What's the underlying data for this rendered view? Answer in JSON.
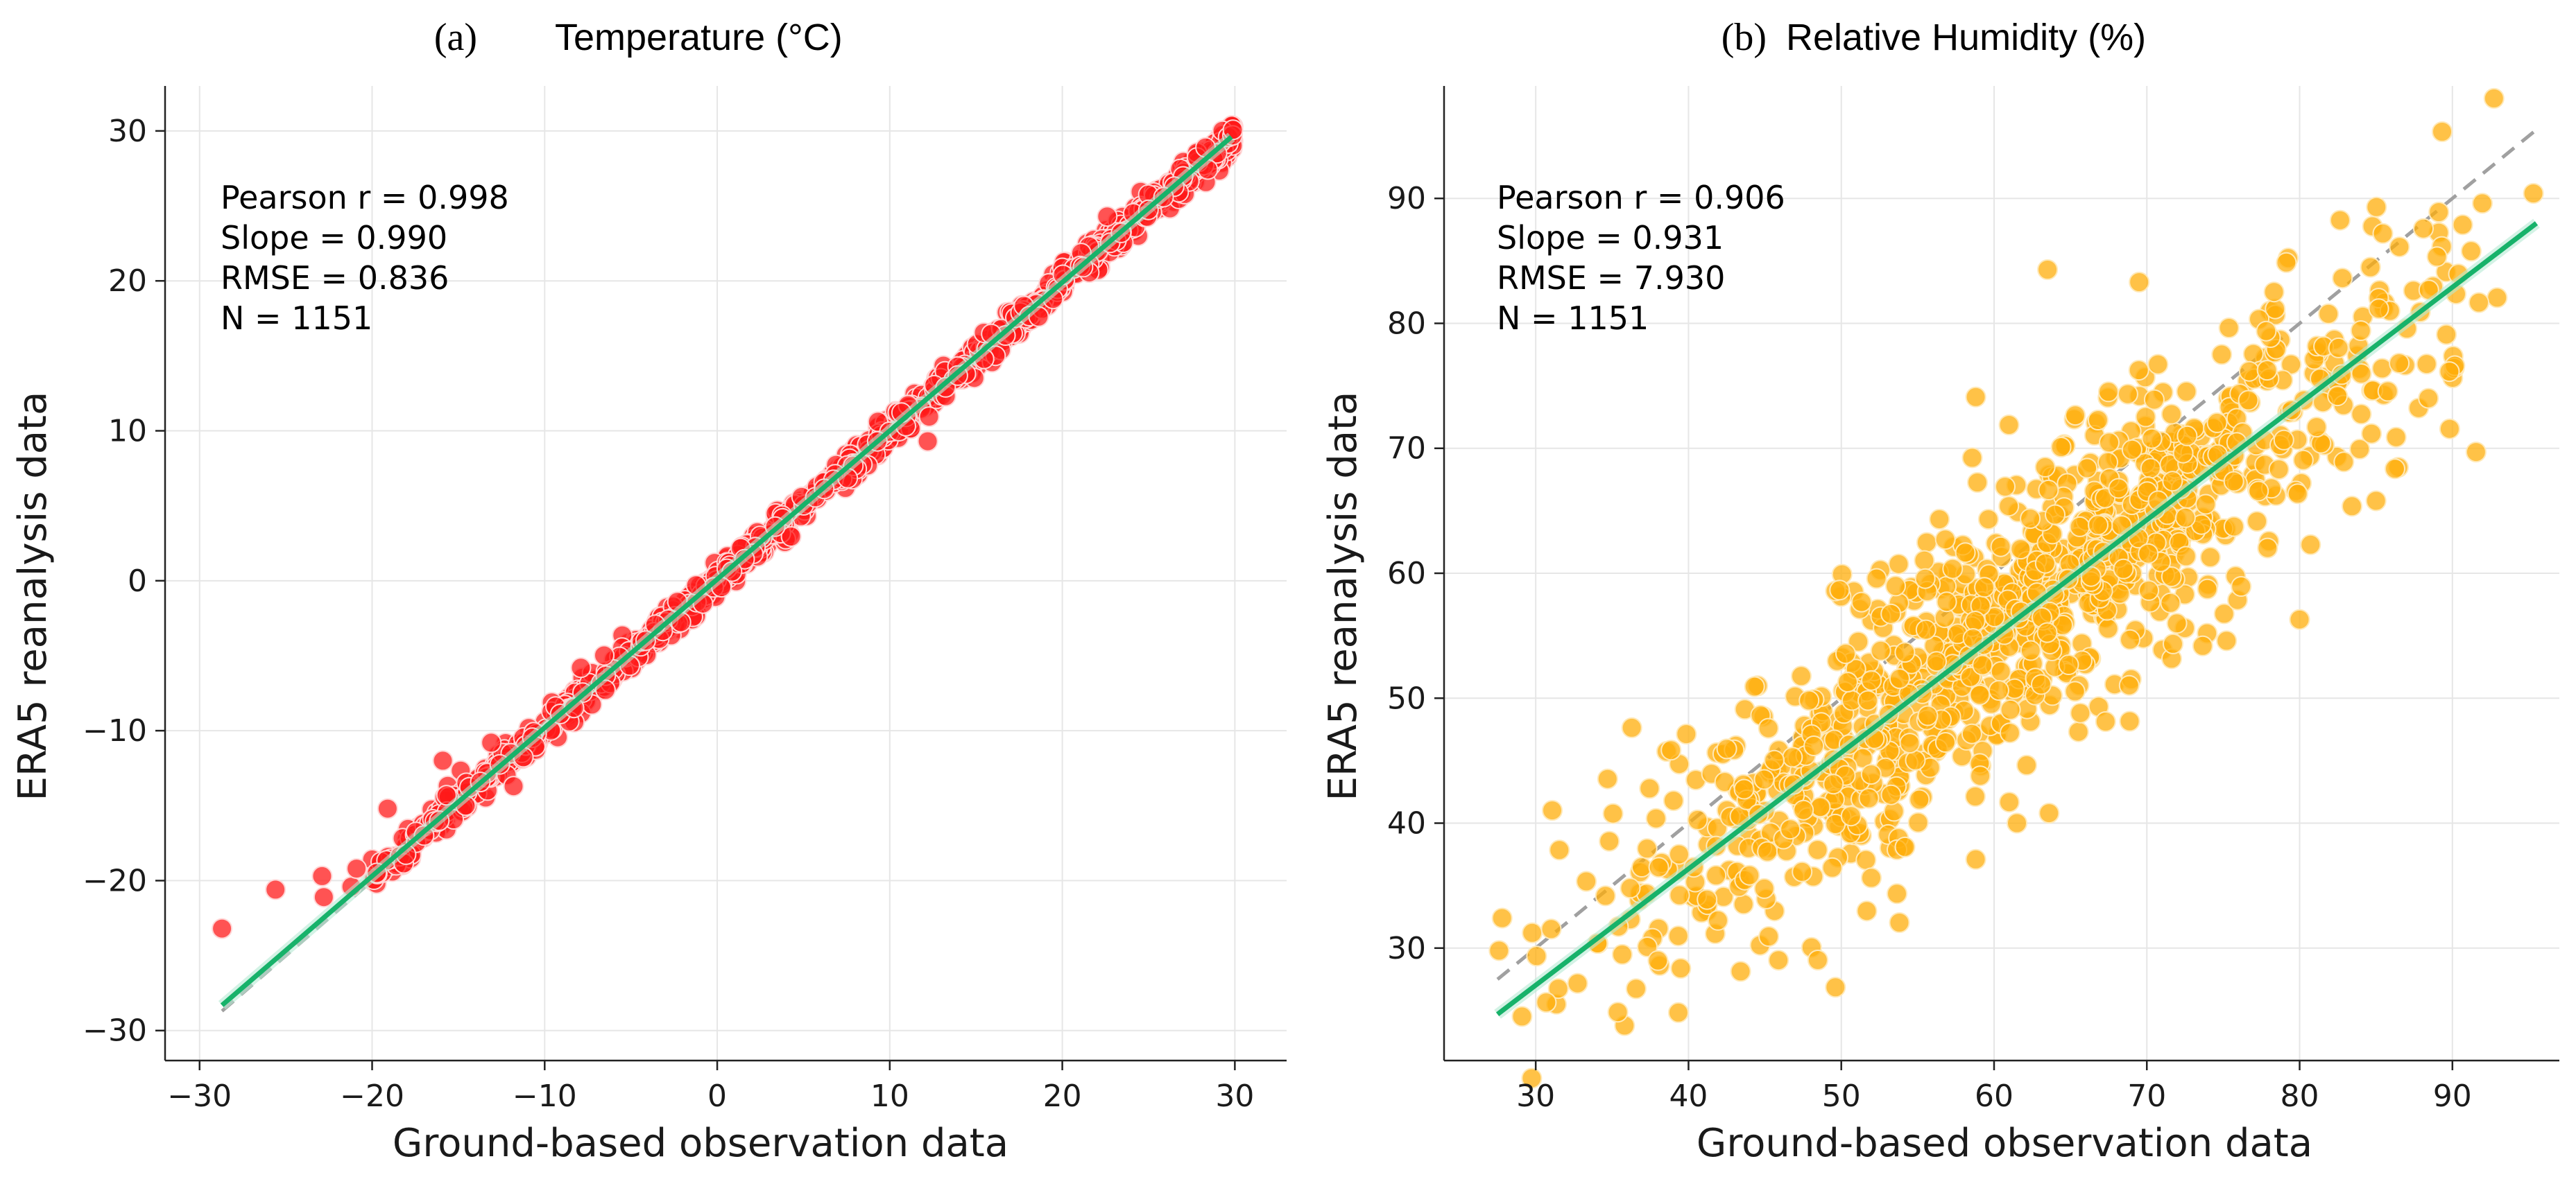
{
  "chart_data": [
    {
      "type": "scatter",
      "panel_label": "(a)",
      "title": "Temperature (°C)",
      "xlabel": "Ground-based observation data",
      "ylabel": "ERA5 reanalysis data",
      "xlim": [
        -32,
        33
      ],
      "ylim": [
        -32,
        33
      ],
      "xticks": [
        -30,
        -20,
        -10,
        0,
        10,
        20,
        30
      ],
      "yticks": [
        -30,
        -20,
        -10,
        0,
        10,
        20,
        30
      ],
      "xtick_labels": [
        "−30",
        "−20",
        "−10",
        "0",
        "10",
        "20",
        "30"
      ],
      "ytick_labels": [
        "−30",
        "−20",
        "−10",
        "0",
        "10",
        "20",
        "30"
      ],
      "grid": true,
      "stats": [
        "Pearson r = 0.998",
        "Slope = 0.990",
        "RMSE = 0.836",
        "N = 1151"
      ],
      "stat_values": {
        "pearson_r": 0.998,
        "slope": 0.99,
        "rmse": 0.836,
        "n": 1151
      },
      "point_color": "#ff1a1a",
      "point_edge": "#ffd6d6",
      "point_alpha": 0.75,
      "fit_line": {
        "slope": 0.99,
        "intercept": 0.1,
        "x_range": [
          -28.7,
          29.8
        ],
        "color": "#17b26a"
      },
      "reference_line": {
        "slope": 1,
        "intercept": 0,
        "x_range": [
          -28.7,
          29.8
        ],
        "color": "#a0a0a0",
        "style": "dashed"
      },
      "outliers": [
        {
          "x": -28.7,
          "y": -23.2
        },
        {
          "x": -25.6,
          "y": -20.6
        },
        {
          "x": -22.9,
          "y": -19.7
        },
        {
          "x": -22.8,
          "y": -21.1
        },
        {
          "x": -21.2,
          "y": -20.4
        },
        {
          "x": -20.9,
          "y": -19.2
        },
        {
          "x": -19.1,
          "y": -15.2
        },
        {
          "x": -15.9,
          "y": -12.0
        },
        {
          "x": -13.1,
          "y": -10.8
        },
        {
          "x": -11.8,
          "y": -13.7
        },
        {
          "x": -7.9,
          "y": -5.8
        },
        {
          "x": 12.2,
          "y": 9.3
        },
        {
          "x": 22.6,
          "y": 24.3
        },
        {
          "x": 28.3,
          "y": 28.9
        }
      ],
      "cloud": {
        "n": 1137,
        "x_min": -20,
        "x_max": 29.9,
        "spread_sd": 0.55,
        "seed": 11
      }
    },
    {
      "type": "scatter",
      "panel_label": "(b)",
      "title": "Relative Humidity (%)",
      "xlabel": "Ground-based observation data",
      "ylabel": "ERA5 reanalysis data",
      "xlim": [
        24,
        97
      ],
      "ylim": [
        21,
        99
      ],
      "xticks": [
        30,
        40,
        50,
        60,
        70,
        80,
        90
      ],
      "yticks": [
        30,
        40,
        50,
        60,
        70,
        80,
        90
      ],
      "xtick_labels": [
        "30",
        "40",
        "50",
        "60",
        "70",
        "80",
        "90"
      ],
      "ytick_labels": [
        "30",
        "40",
        "50",
        "60",
        "70",
        "80",
        "90"
      ],
      "grid": true,
      "stats": [
        "Pearson r = 0.906",
        "Slope = 0.931",
        "RMSE = 7.930",
        "N = 1151"
      ],
      "stat_values": {
        "pearson_r": 0.906,
        "slope": 0.931,
        "rmse": 7.93,
        "n": 1151
      },
      "point_color": "#ffad0a",
      "point_edge": "#ffe9b8",
      "point_alpha": 0.75,
      "fit_line": {
        "slope": 0.931,
        "intercept": -0.9,
        "x_range": [
          27.5,
          95.5
        ],
        "color": "#17b26a"
      },
      "reference_line": {
        "slope": 1,
        "intercept": 0,
        "x_range": [
          27.5,
          95.5
        ],
        "color": "#a0a0a0",
        "style": "dashed"
      },
      "outliers": [
        {
          "x": 63.5,
          "y": 84.3
        },
        {
          "x": 58.8,
          "y": 74.1
        },
        {
          "x": 69.5,
          "y": 83.3
        },
        {
          "x": 80.0,
          "y": 56.3
        },
        {
          "x": 58.8,
          "y": 37.1
        },
        {
          "x": 61.5,
          "y": 40.0
        },
        {
          "x": 63.6,
          "y": 40.8
        },
        {
          "x": 27.6,
          "y": 29.8
        },
        {
          "x": 27.8,
          "y": 32.4
        },
        {
          "x": 95.3,
          "y": 90.4
        },
        {
          "x": 85.0,
          "y": 65.8
        },
        {
          "x": 37.3,
          "y": 30.1
        },
        {
          "x": 38.0,
          "y": 29.0
        }
      ],
      "cloud": {
        "n": 1138,
        "x_min": 29,
        "x_max": 93,
        "spread_sd": 5.6,
        "seed": 29
      }
    }
  ]
}
